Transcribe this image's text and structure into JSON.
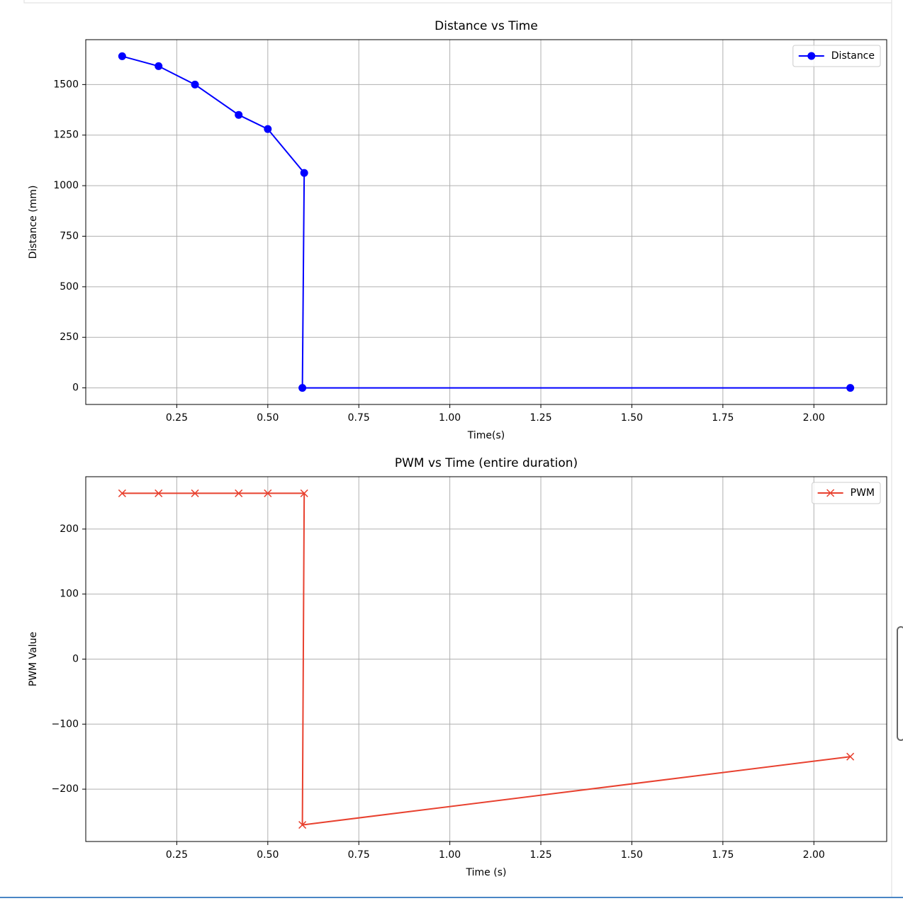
{
  "chart_data": [
    {
      "type": "line",
      "title": "Distance vs Time",
      "xlabel": "Time(s)",
      "ylabel": "Distance (mm)",
      "x": [
        0.1,
        0.2,
        0.3,
        0.42,
        0.5,
        0.6,
        0.595,
        2.1
      ],
      "series": [
        {
          "name": "Distance",
          "color": "#0000ff",
          "marker": "o",
          "values": [
            1640,
            1591,
            1500,
            1350,
            1280,
            1063,
            0,
            0
          ]
        }
      ],
      "xlim": [
        0,
        2.2
      ],
      "ylim": [
        -82,
        1722
      ],
      "xticks": [
        0.25,
        {
          "value": 0.5,
          "label": "0.50"
        },
        0.75,
        {
          "value": 1,
          "label": "1.00"
        },
        1.25,
        {
          "value": 1.5,
          "label": "1.50"
        },
        1.75,
        {
          "value": 2,
          "label": "2.00"
        }
      ],
      "yticks": [
        0,
        250,
        500,
        750,
        1000,
        1250,
        1500
      ],
      "grid": true,
      "legend": "upper right"
    },
    {
      "type": "line",
      "title": "PWM vs Time (entire duration)",
      "xlabel": "Time (s)",
      "ylabel": "PWM Value",
      "x": [
        0.1,
        0.2,
        0.3,
        0.42,
        0.5,
        0.6,
        0.595,
        2.1
      ],
      "series": [
        {
          "name": "PWM",
          "color": "#e8412f",
          "marker": "x",
          "values": [
            255,
            255,
            255,
            255,
            255,
            255,
            -255,
            -150
          ]
        }
      ],
      "xlim": [
        0,
        2.2
      ],
      "ylim": [
        -280.5,
        280.5
      ],
      "xticks": [
        0.25,
        {
          "value": 0.5,
          "label": "0.50"
        },
        0.75,
        {
          "value": 1,
          "label": "1.00"
        },
        1.25,
        {
          "value": 1.5,
          "label": "1.50"
        },
        1.75,
        {
          "value": 2,
          "label": "2.00"
        }
      ],
      "yticks": [
        {
          "value": -200,
          "label": "−200"
        },
        {
          "value": -100,
          "label": "−100"
        },
        0,
        100,
        200
      ],
      "grid": true,
      "legend": "upper right"
    }
  ]
}
